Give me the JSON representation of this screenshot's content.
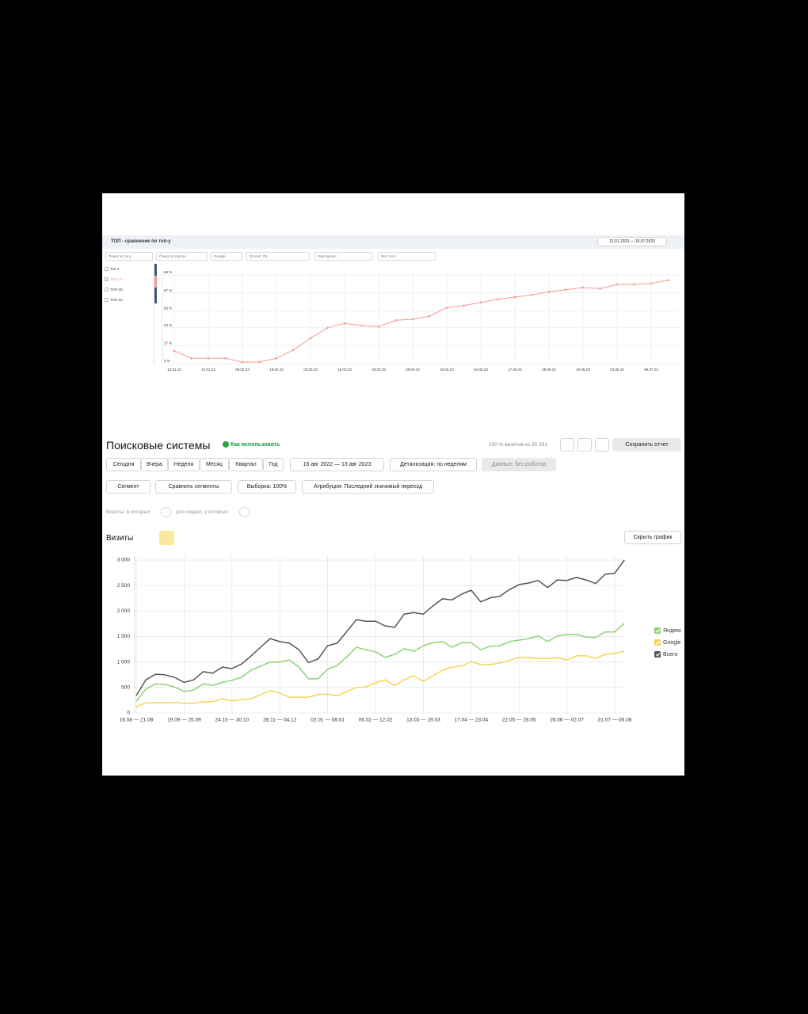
{
  "top_panel": {
    "title": "ТОП - сравнение по топ-у",
    "date_range": "12.01.2023 — 10.07.2023",
    "filters": [
      "Поиск по тегу",
      "Поиск по группе",
      "Google",
      "Emmet, ПК",
      "Мой проект",
      "Все теги"
    ],
    "checkboxes": [
      "Топ-3",
      "ТОП-30",
      "ТОП-50"
    ]
  },
  "report": {
    "title": "Поисковые системы",
    "help": "Как использовать",
    "sample": "100 % визитов из 90 291",
    "save": "Сохранить отчет",
    "periods": [
      "Сегодня",
      "Вчера",
      "Неделя",
      "Месяц",
      "Квартал",
      "Год"
    ],
    "date_range": "16 авг 2022 — 13 авг 2023",
    "detail": "Детализация: по неделям",
    "data_filter": "Данные: без роботов",
    "segment": "Сегмент",
    "compare": "Сравнить сегменты",
    "sampling": "Выборка: 100%",
    "attribution": "Атрибуция: Последний значимый переход",
    "visits_filter": "Визиты, в которых",
    "people_filter": "для людей, у которых",
    "metric": "Визиты",
    "hide_chart": "Скрыть график"
  },
  "chart_data": [
    {
      "type": "line",
      "grid": true,
      "categories": [
        "12.01.23",
        null,
        "24.01.23",
        null,
        "06.02.23",
        null,
        "18.02.23",
        null,
        "03.03.23",
        null,
        "15.03.23",
        null,
        "28.03.23",
        null,
        "09.04.23",
        null,
        "22.04.23",
        null,
        "04.05.23",
        null,
        "17.05.23",
        null,
        "29.05.23",
        null,
        "10.06.23",
        null,
        "23.06.23",
        null,
        "06.07.23",
        null
      ],
      "series": [
        {
          "name": "ТОП-10",
          "color": "#f29b9b",
          "values": [
            12,
            5,
            5,
            5,
            1.5,
            1.5,
            5,
            13,
            24,
            34,
            38,
            36,
            35,
            41,
            42,
            45,
            53,
            55,
            58,
            61,
            63,
            65,
            68,
            70,
            72,
            71,
            75,
            75,
            76,
            79
          ]
        }
      ],
      "ylim": [
        0,
        84
      ],
      "yticks": [
        {
          "value": 0,
          "label": "0 %"
        },
        {
          "value": 17,
          "label": "17 %"
        },
        {
          "value": 34,
          "label": "34 %"
        },
        {
          "value": 50,
          "label": "50 %"
        },
        {
          "value": 67,
          "label": "67 %"
        },
        {
          "value": 84,
          "label": "84 %"
        }
      ]
    },
    {
      "type": "line",
      "grid": true,
      "legend": "right",
      "categories": [
        "16.08 — 21.08",
        null,
        null,
        null,
        null,
        "19.09 — 25.09",
        null,
        null,
        null,
        null,
        "24.10 — 30.10",
        null,
        null,
        null,
        null,
        "28.11 — 04.12",
        null,
        null,
        null,
        null,
        "02.01 — 08.01",
        null,
        null,
        null,
        null,
        "06.02 — 12.02",
        null,
        null,
        null,
        null,
        "13.03 — 19.03",
        null,
        null,
        null,
        null,
        "17.04 — 23.04",
        null,
        null,
        null,
        null,
        "22.05 — 28.05",
        null,
        null,
        null,
        null,
        "26.06 — 02.07",
        null,
        null,
        null,
        null,
        "31.07 — 06.08",
        null
      ],
      "series": [
        {
          "name": "Яндекс",
          "color": "#8fd17a",
          "values": [
            230,
            470,
            570,
            560,
            510,
            420,
            450,
            570,
            540,
            600,
            640,
            700,
            840,
            920,
            1000,
            1000,
            1040,
            900,
            670,
            670,
            860,
            930,
            1100,
            1290,
            1240,
            1200,
            1090,
            1150,
            1260,
            1210,
            1320,
            1380,
            1400,
            1290,
            1380,
            1380,
            1240,
            1310,
            1320,
            1400,
            1430,
            1460,
            1510,
            1400,
            1510,
            1540,
            1540,
            1490,
            1480,
            1590,
            1590,
            1760
          ]
        },
        {
          "name": "Google",
          "color": "#f5d654",
          "values": [
            120,
            200,
            200,
            200,
            210,
            190,
            190,
            220,
            220,
            280,
            240,
            260,
            280,
            360,
            440,
            390,
            310,
            310,
            310,
            360,
            370,
            340,
            420,
            500,
            510,
            590,
            650,
            540,
            650,
            730,
            620,
            730,
            840,
            900,
            920,
            1010,
            950,
            950,
            980,
            1030,
            1090,
            1090,
            1070,
            1070,
            1090,
            1040,
            1120,
            1120,
            1070,
            1150,
            1170,
            1210
          ]
        },
        {
          "name": "Всего",
          "color": "#555555",
          "values": [
            340,
            650,
            760,
            750,
            700,
            600,
            650,
            810,
            780,
            900,
            870,
            960,
            1120,
            1290,
            1460,
            1400,
            1370,
            1240,
            990,
            1060,
            1320,
            1370,
            1600,
            1830,
            1800,
            1800,
            1710,
            1680,
            1940,
            1970,
            1940,
            2100,
            2240,
            2220,
            2330,
            2410,
            2180,
            2260,
            2290,
            2420,
            2520,
            2550,
            2600,
            2460,
            2610,
            2600,
            2660,
            2610,
            2540,
            2720,
            2740,
            3000
          ]
        }
      ],
      "ylim": [
        0,
        3000
      ],
      "yticks": [
        0,
        500,
        {
          "value": 1000,
          "label": "1 000"
        },
        {
          "value": 1500,
          "label": "1 500"
        },
        {
          "value": 2000,
          "label": "2 000"
        },
        {
          "value": 2500,
          "label": "2 500"
        },
        {
          "value": 3000,
          "label": "3 000"
        }
      ]
    }
  ]
}
